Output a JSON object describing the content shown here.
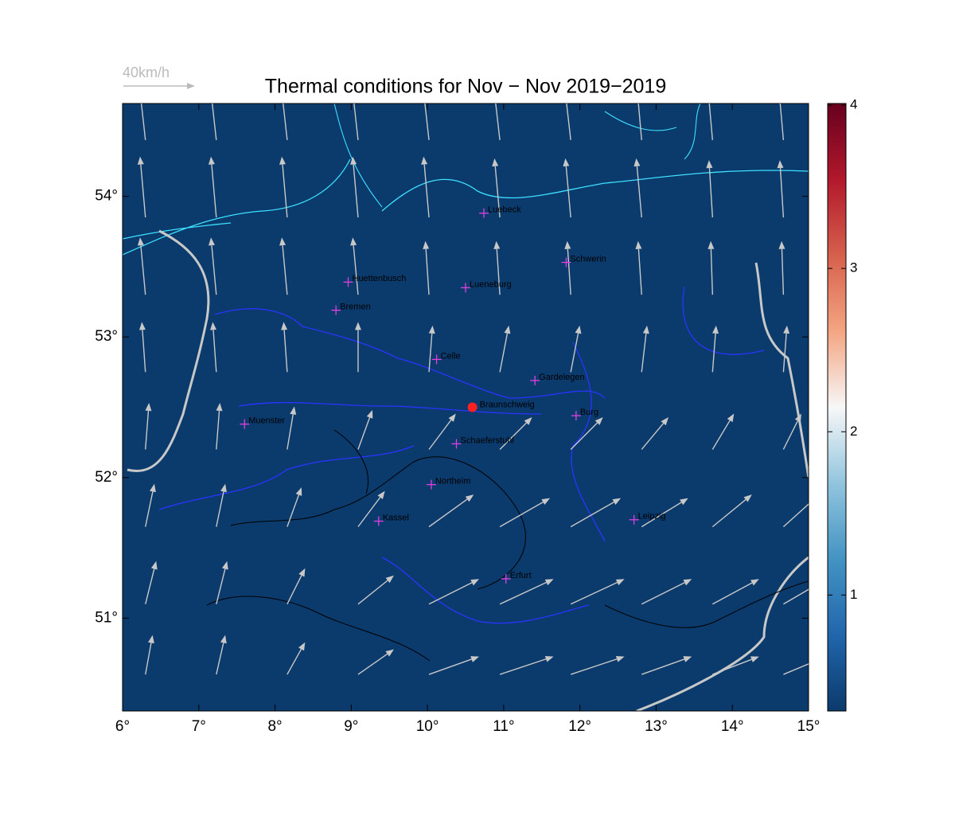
{
  "chart_data": {
    "type": "vector-map",
    "title": "Thermal conditions for Nov − Nov  2019−2019",
    "background_color": "#0b3a6c",
    "xlim": [
      6,
      15
    ],
    "ylim": [
      50.34,
      54.66
    ],
    "xticks": [
      {
        "value": 6,
        "label": "6°"
      },
      {
        "value": 7,
        "label": "7°"
      },
      {
        "value": 8,
        "label": "8°"
      },
      {
        "value": 9,
        "label": "9°"
      },
      {
        "value": 10,
        "label": "10°"
      },
      {
        "value": 11,
        "label": "11°"
      },
      {
        "value": 12,
        "label": "12°"
      },
      {
        "value": 13,
        "label": "13°"
      },
      {
        "value": 14,
        "label": "14°"
      },
      {
        "value": 15,
        "label": "15°"
      }
    ],
    "yticks": [
      {
        "value": 51,
        "label": "51°"
      },
      {
        "value": 52,
        "label": "52°"
      },
      {
        "value": 53,
        "label": "53°"
      },
      {
        "value": 54,
        "label": "54°"
      }
    ],
    "colorbar": {
      "clim": [
        0.29,
        4.01
      ],
      "ticks": [
        1,
        2,
        3,
        4
      ],
      "colors": [
        "#0b3a6c",
        "#2166ac",
        "#4393c3",
        "#92c5de",
        "#f7f7f7",
        "#f4a582",
        "#d6604d",
        "#b2182b",
        "#67001f"
      ]
    },
    "wind_scale_label": "40km/h",
    "wind_scale_value": 40,
    "wind_color": "#c8c8c8",
    "wind": {
      "lon": [
        6.3,
        7.23,
        8.16,
        9.09,
        10.02,
        10.95,
        11.88,
        12.81,
        13.74,
        14.67
      ],
      "lat": [
        54.4,
        53.85,
        53.3,
        52.75,
        52.2,
        51.65,
        51.1,
        50.6
      ],
      "u": [
        [
          -4,
          -4,
          -4,
          -4,
          -4,
          -4,
          -4,
          -3,
          -3,
          -3
        ],
        [
          -3,
          -3,
          -3,
          -3,
          -3,
          -3,
          -3,
          -3,
          -2,
          -2
        ],
        [
          -3,
          -3,
          -3,
          -3,
          -2,
          -2,
          -2,
          -2,
          -1,
          -1
        ],
        [
          -2,
          -2,
          -2,
          0,
          2,
          5,
          5,
          3,
          2,
          2
        ],
        [
          2,
          2,
          4,
          8,
          15,
          18,
          18,
          15,
          12,
          10
        ],
        [
          5,
          5,
          8,
          15,
          25,
          28,
          28,
          26,
          22,
          20
        ],
        [
          6,
          6,
          10,
          20,
          28,
          30,
          30,
          28,
          26,
          24
        ],
        [
          4,
          5,
          10,
          20,
          28,
          30,
          30,
          28,
          26,
          24
        ]
      ],
      "v": [
        [
          36,
          36,
          36,
          36,
          36,
          35,
          35,
          34,
          34,
          34
        ],
        [
          34,
          34,
          34,
          34,
          34,
          33,
          33,
          33,
          32,
          32
        ],
        [
          32,
          32,
          32,
          32,
          30,
          30,
          30,
          30,
          30,
          30
        ],
        [
          28,
          28,
          28,
          28,
          26,
          26,
          26,
          26,
          26,
          26
        ],
        [
          26,
          26,
          24,
          22,
          20,
          18,
          18,
          18,
          20,
          20
        ],
        [
          24,
          24,
          22,
          20,
          18,
          16,
          16,
          16,
          18,
          18
        ],
        [
          24,
          24,
          20,
          16,
          14,
          14,
          14,
          14,
          14,
          14
        ],
        [
          22,
          22,
          18,
          14,
          10,
          10,
          10,
          10,
          10,
          10
        ]
      ]
    },
    "cities": [
      {
        "name": "Luebeck",
        "lon": 10.74,
        "lat": 53.88
      },
      {
        "name": "Schwerin",
        "lon": 11.82,
        "lat": 53.53
      },
      {
        "name": "Huettenbusch",
        "lon": 8.96,
        "lat": 53.39
      },
      {
        "name": "Lueneburg",
        "lon": 10.5,
        "lat": 53.35
      },
      {
        "name": "Bremen",
        "lon": 8.8,
        "lat": 53.19
      },
      {
        "name": "Celle",
        "lon": 10.12,
        "lat": 52.84
      },
      {
        "name": "Gardelegen",
        "lon": 11.41,
        "lat": 52.69
      },
      {
        "name": "Burg",
        "lon": 11.95,
        "lat": 52.44
      },
      {
        "name": "Muenster",
        "lon": 7.6,
        "lat": 52.38
      },
      {
        "name": "Schaeferstuhl",
        "lon": 10.38,
        "lat": 52.24
      },
      {
        "name": "Northeim",
        "lon": 10.05,
        "lat": 51.95
      },
      {
        "name": "Kassel",
        "lon": 9.36,
        "lat": 51.69
      },
      {
        "name": "Leipzig",
        "lon": 12.71,
        "lat": 51.7
      },
      {
        "name": "Erfurt",
        "lon": 11.03,
        "lat": 51.28
      }
    ],
    "city_color": "#e040e0",
    "station": {
      "name": "Braunschweig",
      "lon": 10.59,
      "lat": 52.5,
      "color": "#ff2020"
    }
  }
}
